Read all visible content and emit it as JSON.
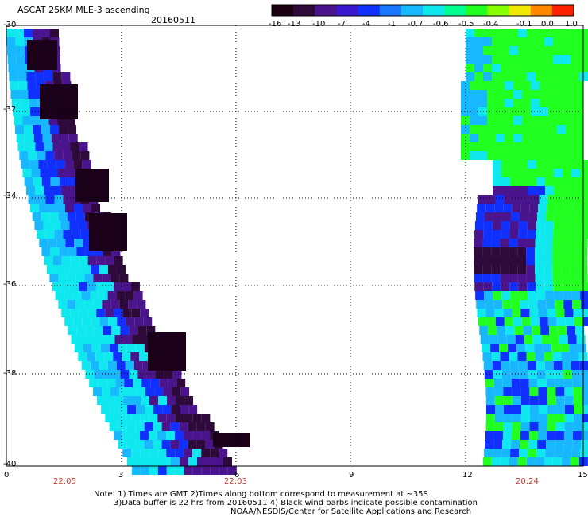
{
  "header": {
    "title": "ASCAT 25KM MLE-3 ascending",
    "date": "20160511"
  },
  "colorbar": {
    "labels": [
      "-16",
      "-13",
      "-10",
      "-7",
      "-4",
      "-1",
      "-0.7",
      "-0.6",
      "-0.5",
      "-0.4",
      "-0.1",
      "0.0",
      "1.0"
    ],
    "colors": [
      "#1a0010",
      "#2e0a3a",
      "#4a148c",
      "#3a18d0",
      "#1030ff",
      "#1a78ff",
      "#18b8ff",
      "#10e8f0",
      "#00ff90",
      "#20ff20",
      "#88ff00",
      "#f0e800",
      "#ff8800",
      "#ff2000"
    ]
  },
  "axes": {
    "y_ticks": [
      "-30",
      "-32",
      "-34",
      "-36",
      "-38",
      "-40"
    ],
    "x_ticks": [
      "0",
      "3",
      "6",
      "9",
      "12",
      "15"
    ],
    "times": [
      "22:05",
      "22:03",
      "20:24"
    ]
  },
  "notes": {
    "line1": "Note: 1) Times are GMT 2)Times along bottom correspond to measurement at ~35S",
    "line2": "3)Data buffer is 22 hrs from 20160511 4) Black wind barbs indicate possible contamination",
    "line3": "NOAA/NESDIS/Center for Satellite Applications and Research"
  },
  "legend_colors": {
    "deep_purple": "#2e0a3a",
    "purple": "#4a148c",
    "blue": "#1030ff",
    "light_blue": "#18b8ff",
    "cyan": "#10e8f0",
    "green": "#20ff20"
  }
}
